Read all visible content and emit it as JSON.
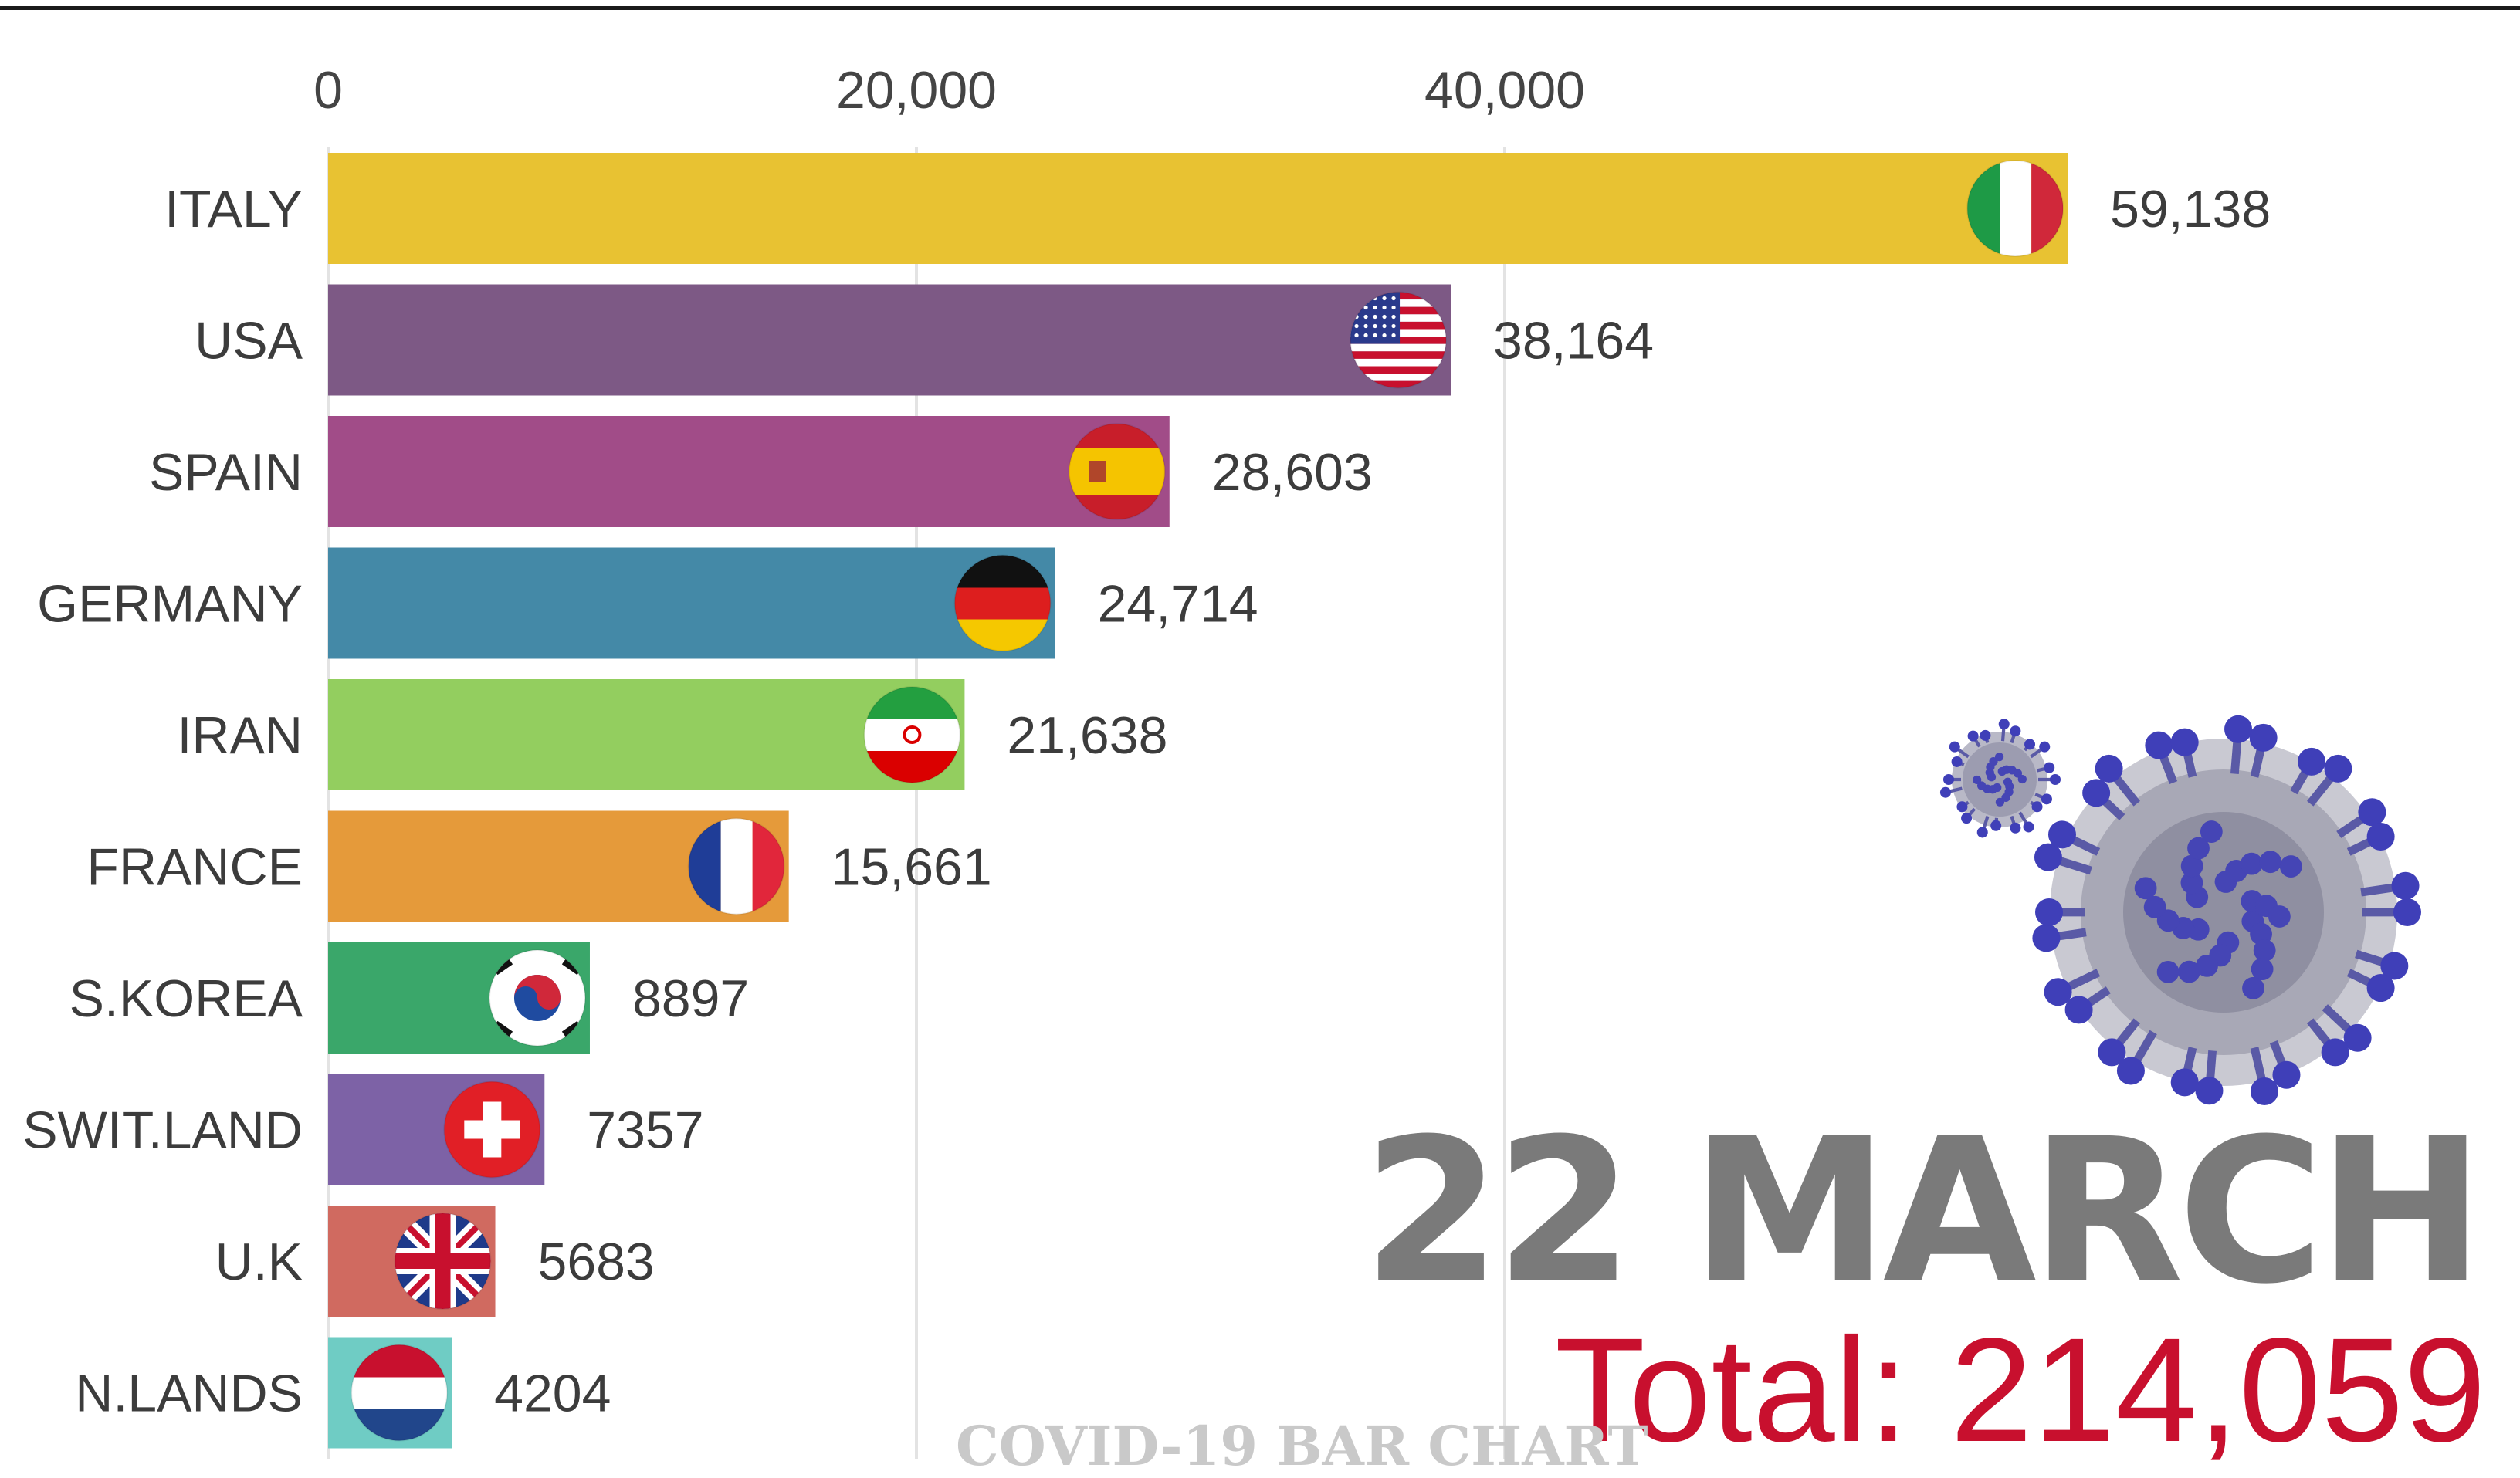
{
  "chart_data": {
    "type": "bar",
    "orientation": "horizontal",
    "categories": [
      "ITALY",
      "USA",
      "SPAIN",
      "GERMANY",
      "IRAN",
      "FRANCE",
      "S.KOREA",
      "SWIT.LAND",
      "U.K",
      "N.LANDS"
    ],
    "values": [
      59138,
      38164,
      28603,
      24714,
      21638,
      15661,
      8897,
      7357,
      5683,
      4204
    ],
    "value_labels": [
      "59,138",
      "38,164",
      "28,603",
      "24,714",
      "21,638",
      "15,661",
      "8897",
      "7357",
      "5683",
      "4204"
    ],
    "colors": [
      "#e8c232",
      "#7d5985",
      "#a14c88",
      "#4489a7",
      "#93ce5f",
      "#e59a3a",
      "#3aa76a",
      "#7d62a6",
      "#d06a60",
      "#6fccc4"
    ],
    "flags": [
      "italy-flag",
      "usa-flag",
      "spain-flag",
      "germany-flag",
      "iran-flag",
      "france-flag",
      "south-korea-flag",
      "switzerland-flag",
      "uk-flag",
      "netherlands-flag"
    ],
    "xlim": [
      0,
      60000
    ],
    "x_ticks": [
      0,
      20000,
      40000
    ],
    "x_tick_labels": [
      "0",
      "20,000",
      "40,000"
    ],
    "grid": true,
    "axis_position": "top"
  },
  "date_label": "22 MARCH",
  "total_label": "Total: 214,059",
  "watermark": "COVID-19 BAR CHART",
  "decorations": [
    "coronavirus-small-icon",
    "coronavirus-large-icon"
  ]
}
